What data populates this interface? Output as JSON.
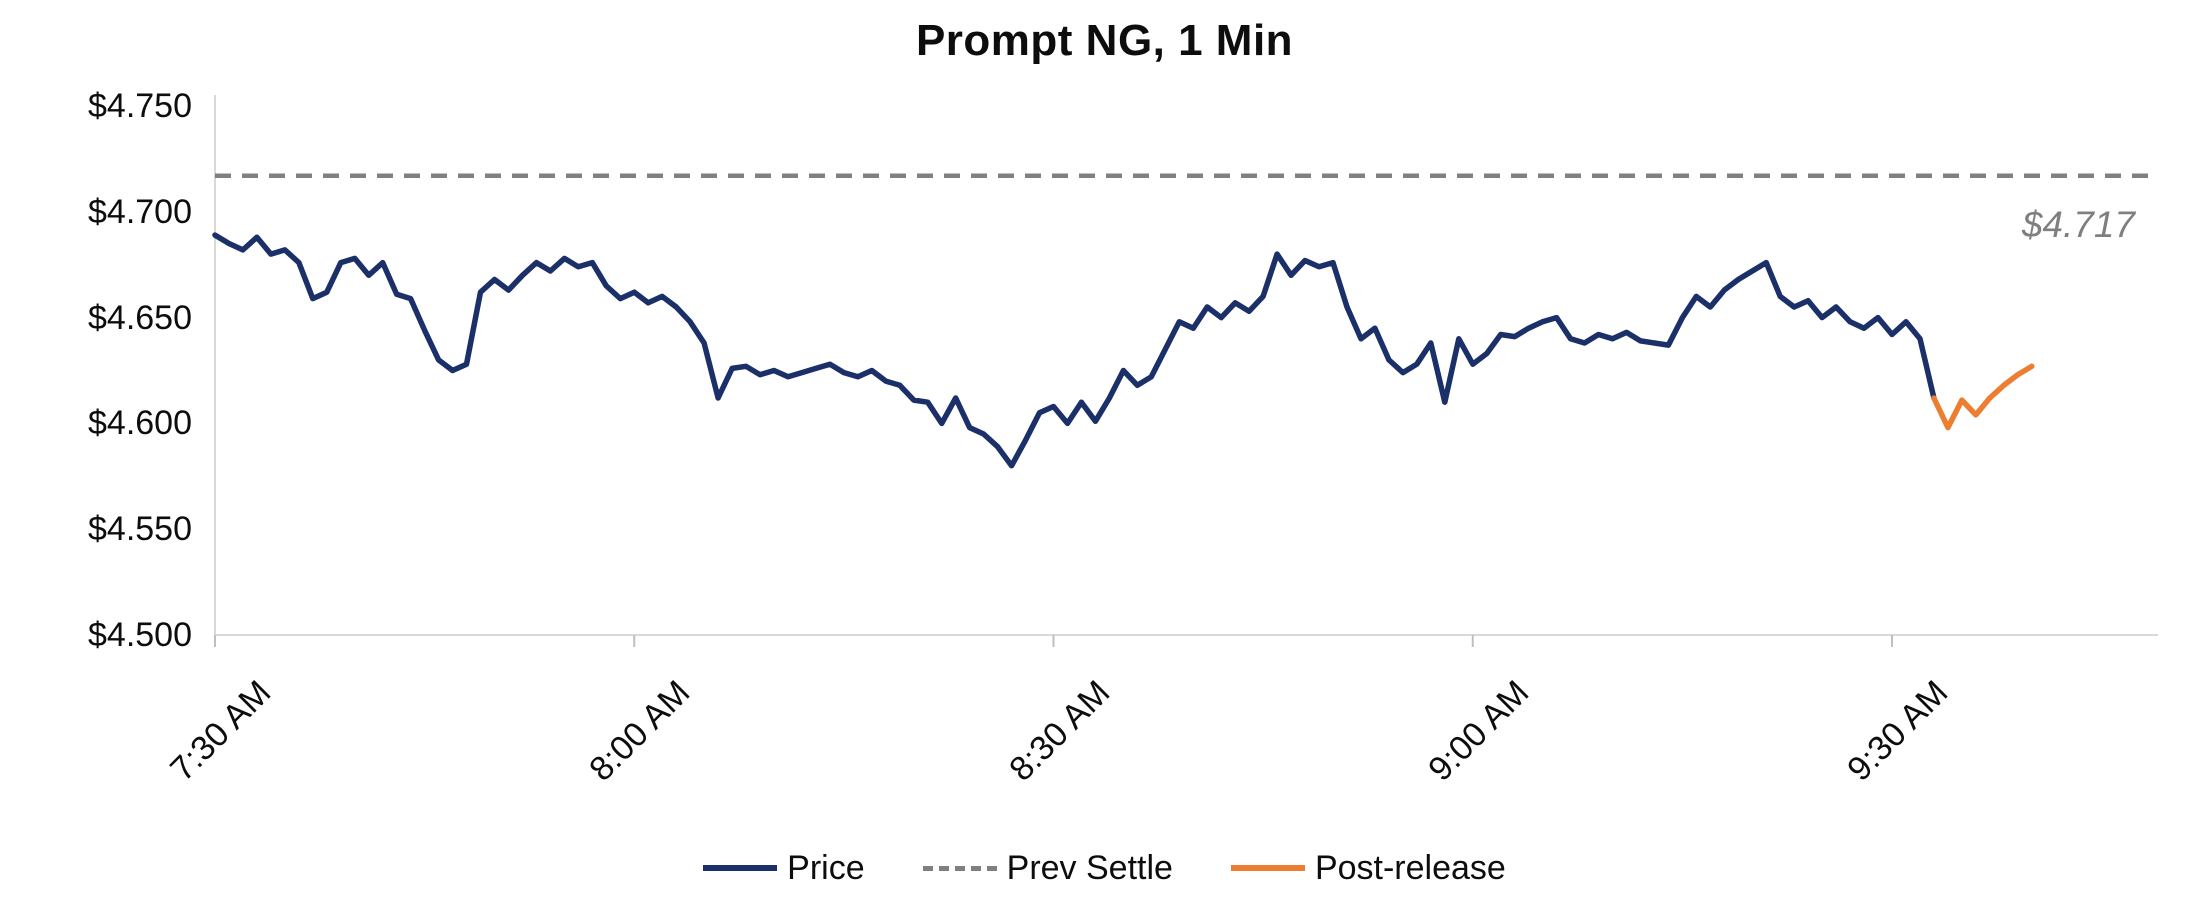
{
  "chart_data": {
    "type": "line",
    "title": "Prompt NG, 1 Min",
    "xlabel": "",
    "ylabel": "",
    "ylim": [
      4.5,
      4.757
    ],
    "xlim_minutes": [
      0,
      139
    ],
    "grid": "off",
    "legend_position": "bottom",
    "y_ticks": [
      "$4.750",
      "$4.700",
      "$4.650",
      "$4.600",
      "$4.550",
      "$4.500"
    ],
    "y_tick_values": [
      4.75,
      4.7,
      4.65,
      4.6,
      4.55,
      4.5
    ],
    "x_ticks": [
      "7:30 AM",
      "8:00 AM",
      "8:30 AM",
      "9:00 AM",
      "9:30 AM"
    ],
    "x_tick_minutes": [
      0,
      30,
      60,
      90,
      120
    ],
    "prev_settle": 4.717,
    "prev_settle_label": "$4.717",
    "series": [
      {
        "name": "Price",
        "color": "#1b2f69",
        "start_minute": 0,
        "values": [
          4.689,
          4.685,
          4.682,
          4.688,
          4.68,
          4.682,
          4.676,
          4.659,
          4.662,
          4.676,
          4.678,
          4.67,
          4.676,
          4.661,
          4.659,
          4.644,
          4.63,
          4.625,
          4.628,
          4.662,
          4.668,
          4.663,
          4.67,
          4.676,
          4.672,
          4.678,
          4.674,
          4.676,
          4.665,
          4.659,
          4.662,
          4.657,
          4.66,
          4.655,
          4.648,
          4.638,
          4.612,
          4.626,
          4.627,
          4.623,
          4.625,
          4.622,
          4.624,
          4.626,
          4.628,
          4.624,
          4.622,
          4.625,
          4.62,
          4.618,
          4.611,
          4.61,
          4.6,
          4.612,
          4.598,
          4.595,
          4.589,
          4.58,
          4.592,
          4.605,
          4.608,
          4.6,
          4.61,
          4.601,
          4.612,
          4.625,
          4.618,
          4.622,
          4.635,
          4.648,
          4.645,
          4.655,
          4.65,
          4.657,
          4.653,
          4.66,
          4.68,
          4.67,
          4.677,
          4.674,
          4.676,
          4.655,
          4.64,
          4.645,
          4.63,
          4.624,
          4.628,
          4.638,
          4.61,
          4.64,
          4.628,
          4.633,
          4.642,
          4.641,
          4.645,
          4.648,
          4.65,
          4.64,
          4.638,
          4.642,
          4.64,
          4.643,
          4.639,
          4.638,
          4.637,
          4.65,
          4.66,
          4.655,
          4.663,
          4.668,
          4.672,
          4.676,
          4.66,
          4.655,
          4.658,
          4.65,
          4.655,
          4.648,
          4.645,
          4.65,
          4.642,
          4.648,
          4.64,
          4.612
        ]
      },
      {
        "name": "Post-release",
        "color": "#ed7d31",
        "start_minute": 123,
        "values": [
          4.612,
          4.598,
          4.611,
          4.604,
          4.612,
          4.618,
          4.623,
          4.627
        ]
      }
    ],
    "legend": [
      {
        "label": "Price",
        "color": "#1b2f69",
        "style": "solid"
      },
      {
        "label": "Prev Settle",
        "color": "#808080",
        "style": "dashed"
      },
      {
        "label": "Post-release",
        "color": "#ed7d31",
        "style": "solid"
      }
    ]
  }
}
